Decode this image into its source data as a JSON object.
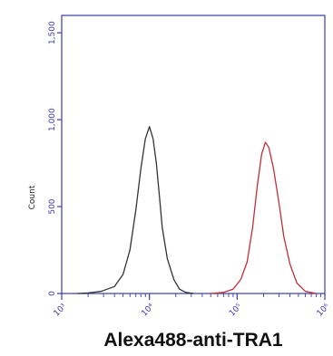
{
  "chart_data": {
    "type": "line",
    "title": "",
    "xlabel": "Alexa488-anti-TRA1",
    "ylabel": "Count",
    "xscale": "log",
    "xlim": [
      1000,
      1000000
    ],
    "ylim": [
      0,
      1600
    ],
    "x_tick_labels": [
      "10³",
      "10⁴",
      "10⁵",
      "10⁶"
    ],
    "y_tick_labels": [
      "0",
      "500",
      "1,000",
      "1,500"
    ],
    "grid": false,
    "legend": "none",
    "series": [
      {
        "color": "#333333",
        "x": [
          1500,
          2000,
          2800,
          4000,
          5000,
          6000,
          7000,
          8000,
          9000,
          10000,
          11000,
          12000,
          13000,
          14000,
          16000,
          19000,
          22000,
          26000,
          32000
        ],
        "values": [
          0,
          3,
          12,
          40,
          110,
          250,
          480,
          720,
          890,
          960,
          890,
          750,
          560,
          380,
          200,
          80,
          25,
          6,
          0
        ]
      },
      {
        "color": "#c0303a",
        "x": [
          50000,
          70000,
          90000,
          110000,
          130000,
          150000,
          170000,
          190000,
          210000,
          230000,
          260000,
          300000,
          340000,
          400000,
          480000,
          600000,
          800000
        ],
        "values": [
          0,
          6,
          25,
          80,
          180,
          380,
          620,
          800,
          870,
          840,
          720,
          520,
          330,
          170,
          60,
          12,
          0
        ]
      }
    ]
  }
}
